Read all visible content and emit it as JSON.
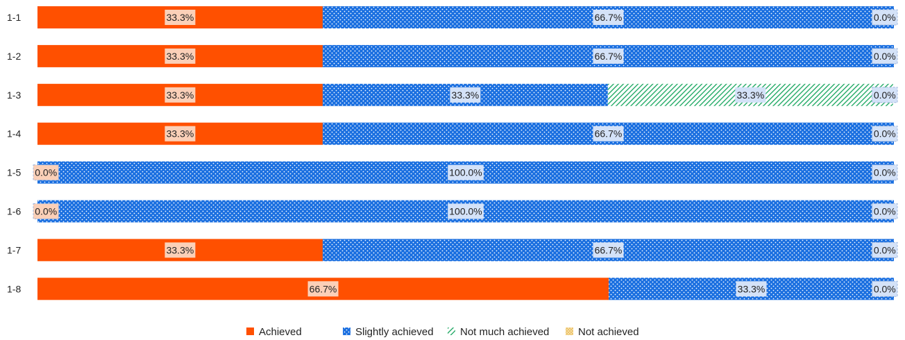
{
  "chart_data": {
    "type": "bar",
    "orientation": "horizontal",
    "stacked": "percent",
    "categories": [
      "1-1",
      "1-2",
      "1-3",
      "1-4",
      "1-5",
      "1-6",
      "1-7",
      "1-8"
    ],
    "series": [
      {
        "name": "Achieved",
        "values": [
          33.3,
          33.3,
          33.3,
          33.3,
          0.0,
          0.0,
          33.3,
          66.7
        ],
        "color": "#ff5000",
        "pattern": "solid"
      },
      {
        "name": "Slightly achieved",
        "values": [
          66.7,
          66.7,
          33.3,
          66.7,
          100.0,
          100.0,
          66.7,
          33.3
        ],
        "color": "#1a6fe0",
        "pattern": "dots"
      },
      {
        "name": "Not much achieved",
        "values": [
          0.0,
          0.0,
          33.3,
          0.0,
          0.0,
          0.0,
          0.0,
          0.0
        ],
        "color": "#22aa66",
        "pattern": "diagonal-hatch"
      },
      {
        "name": "Not achieved",
        "values": [
          0.0,
          0.0,
          0.0,
          0.0,
          0.0,
          0.0,
          0.0,
          0.0
        ],
        "color": "#e8b84a",
        "pattern": "dots"
      }
    ],
    "labels": [
      [
        "33.3%",
        "66.7%",
        "",
        "0.0%"
      ],
      [
        "33.3%",
        "66.7%",
        "",
        "0.0%"
      ],
      [
        "33.3%",
        "33.3%",
        "33.3%",
        "0.0%"
      ],
      [
        "33.3%",
        "66.7%",
        "",
        "0.0%"
      ],
      [
        "0.0%",
        "100.0%",
        "",
        "0.0%"
      ],
      [
        "0.0%",
        "100.0%",
        "",
        "0.0%"
      ],
      [
        "33.3%",
        "66.7%",
        "",
        "0.0%"
      ],
      [
        "66.7%",
        "33.3%",
        "",
        "0.0%"
      ]
    ],
    "xlim": [
      0,
      100
    ],
    "unit": "%",
    "grid": false,
    "legend_position": "bottom"
  }
}
